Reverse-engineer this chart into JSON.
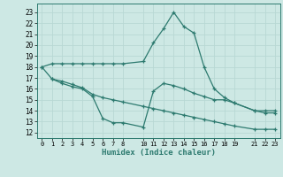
{
  "xlabel": "Humidex (Indice chaleur)",
  "bg_color": "#cde8e4",
  "line_color": "#2d7a6f",
  "grid_color": "#b8d8d4",
  "ylim": [
    11.5,
    23.8
  ],
  "xlim": [
    -0.5,
    23.5
  ],
  "yticks": [
    12,
    13,
    14,
    15,
    16,
    17,
    18,
    19,
    20,
    21,
    22,
    23
  ],
  "xtick_positions": [
    0,
    1,
    2,
    3,
    4,
    5,
    6,
    7,
    8,
    10,
    11,
    12,
    13,
    14,
    15,
    16,
    17,
    18,
    19,
    21,
    22,
    23
  ],
  "xtick_labels": [
    "0",
    "1",
    "2",
    "3",
    "4",
    "5",
    "6",
    "7",
    "8",
    "10",
    "11",
    "12",
    "13",
    "14",
    "15",
    "16",
    "17",
    "18",
    "19",
    "21",
    "22",
    "23"
  ],
  "line1_x": [
    0,
    1,
    2,
    3,
    4,
    5,
    6,
    7,
    8,
    10,
    11,
    12,
    13,
    14,
    15,
    16,
    17,
    18,
    19,
    21,
    22,
    23
  ],
  "line1_y": [
    18.0,
    18.3,
    18.3,
    18.3,
    18.3,
    18.3,
    18.3,
    18.3,
    18.3,
    18.5,
    20.2,
    21.5,
    23.0,
    21.7,
    21.1,
    18.0,
    16.0,
    15.2,
    14.7,
    14.0,
    14.0,
    14.0
  ],
  "line2_x": [
    1,
    2,
    3,
    4,
    5,
    6,
    7,
    8,
    10,
    11,
    12,
    13,
    14,
    15,
    16,
    17,
    18,
    19,
    21,
    22,
    23
  ],
  "line2_y": [
    16.9,
    16.5,
    16.2,
    16.0,
    15.3,
    13.3,
    12.9,
    12.9,
    12.5,
    15.8,
    16.5,
    16.3,
    16.0,
    15.6,
    15.3,
    15.0,
    15.0,
    14.7,
    14.0,
    13.8,
    13.8
  ],
  "line3_x": [
    0,
    1,
    2,
    3,
    4,
    5,
    6,
    7,
    8,
    10,
    11,
    12,
    13,
    14,
    15,
    16,
    17,
    18,
    19,
    21,
    22,
    23
  ],
  "line3_y": [
    18.0,
    16.9,
    16.7,
    16.4,
    16.1,
    15.5,
    15.2,
    15.0,
    14.8,
    14.4,
    14.2,
    14.0,
    13.8,
    13.6,
    13.4,
    13.2,
    13.0,
    12.8,
    12.6,
    12.3,
    12.3,
    12.3
  ],
  "marker_size": 3,
  "linewidth": 0.9,
  "ytick_fontsize": 5.5,
  "xtick_fontsize": 5.0,
  "xlabel_fontsize": 6.5
}
